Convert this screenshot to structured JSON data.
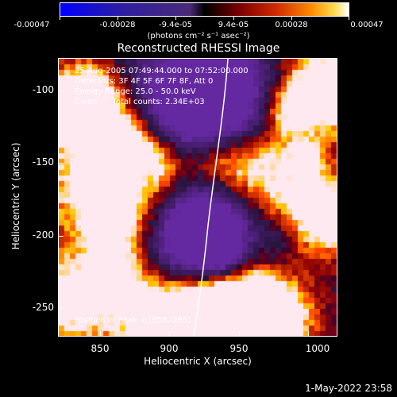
{
  "colorbar": {
    "ticks": [
      "-0.00047",
      "-0.00028",
      "-9.4e-05",
      "9.4e-05",
      "0.00028",
      "0.00047"
    ],
    "units": "(photons cm⁻² s⁻¹ asec⁻²)"
  },
  "title": "Reconstructed RHESSI Image",
  "info": {
    "time": "25-Aug-2005 07:49:44.000 to 07:52:00.000",
    "detectors": "Detectors: 3F 4F 5F 6F 7F 8F, Att 0",
    "energy": "Energy Range: 25.0 - 50.0 keV",
    "clean": "Clean      Total counts: 2.34E+03",
    "peak": "Position of Peak = [958,-265]"
  },
  "axes": {
    "xlabel": "Heliocentric X (arcsec)",
    "ylabel": "Heliocentric Y (arcsec)",
    "xticks": [
      "850",
      "900",
      "950",
      "1000"
    ],
    "yticks": [
      "-100",
      "-150",
      "-200",
      "-250"
    ]
  },
  "footer": {
    "date": "1-May-2022 23:58"
  },
  "colors": {
    "background": "#000000",
    "frame": "#ffffff",
    "limb": "#ffffff"
  }
}
